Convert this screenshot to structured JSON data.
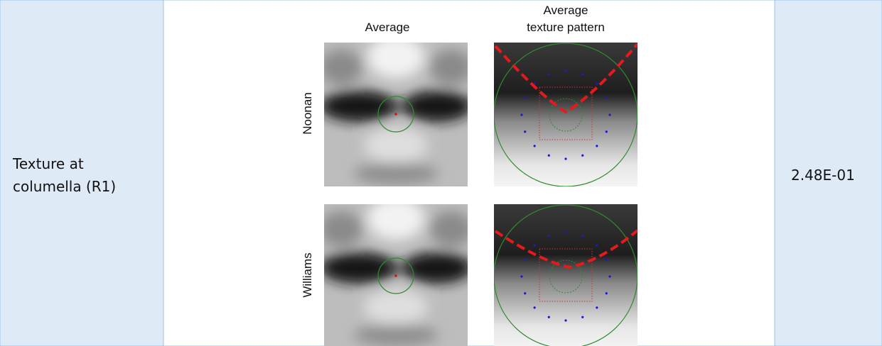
{
  "table": {
    "label": [
      "Texture at",
      "columella (R1)"
    ],
    "value": "2.48E-01",
    "figure": {
      "columns": [
        [
          "Average"
        ],
        [
          "Average",
          "texture pattern"
        ]
      ],
      "rows": [
        "Noonan",
        "Williams"
      ]
    }
  }
}
